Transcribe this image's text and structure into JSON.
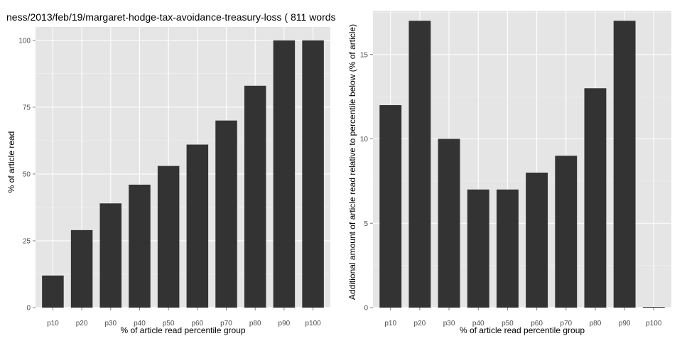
{
  "title": "ness/2013/feb/19/margaret-hodge-tax-avoidance-treasury-loss ( 811 words",
  "chart_data": [
    {
      "type": "bar",
      "categories": [
        "p10",
        "p20",
        "p30",
        "p40",
        "p50",
        "p60",
        "p70",
        "p80",
        "p90",
        "p100"
      ],
      "values": [
        12,
        29,
        39,
        46,
        53,
        61,
        70,
        83,
        100,
        100
      ],
      "xlabel": "% of article read percentile group",
      "ylabel": "% of article read",
      "ylim": [
        0,
        105
      ],
      "yticks": [
        0,
        25,
        50,
        75,
        100
      ],
      "grid": true,
      "bar_color": "#333333",
      "panel_color": "#e5e5e5"
    },
    {
      "type": "bar",
      "categories": [
        "p10",
        "p20",
        "p30",
        "p40",
        "p50",
        "p60",
        "p70",
        "p80",
        "p90",
        "p100"
      ],
      "values": [
        12,
        17,
        10,
        7,
        7,
        8,
        9,
        13,
        17,
        0
      ],
      "xlabel": "% of article read percentile group",
      "ylabel": "Additional amount of article read relative to percentile below (% of article)",
      "ylim": [
        0,
        17.6
      ],
      "yticks": [
        0,
        5,
        10,
        15
      ],
      "grid": true,
      "bar_color": "#333333",
      "panel_color": "#e5e5e5"
    }
  ]
}
